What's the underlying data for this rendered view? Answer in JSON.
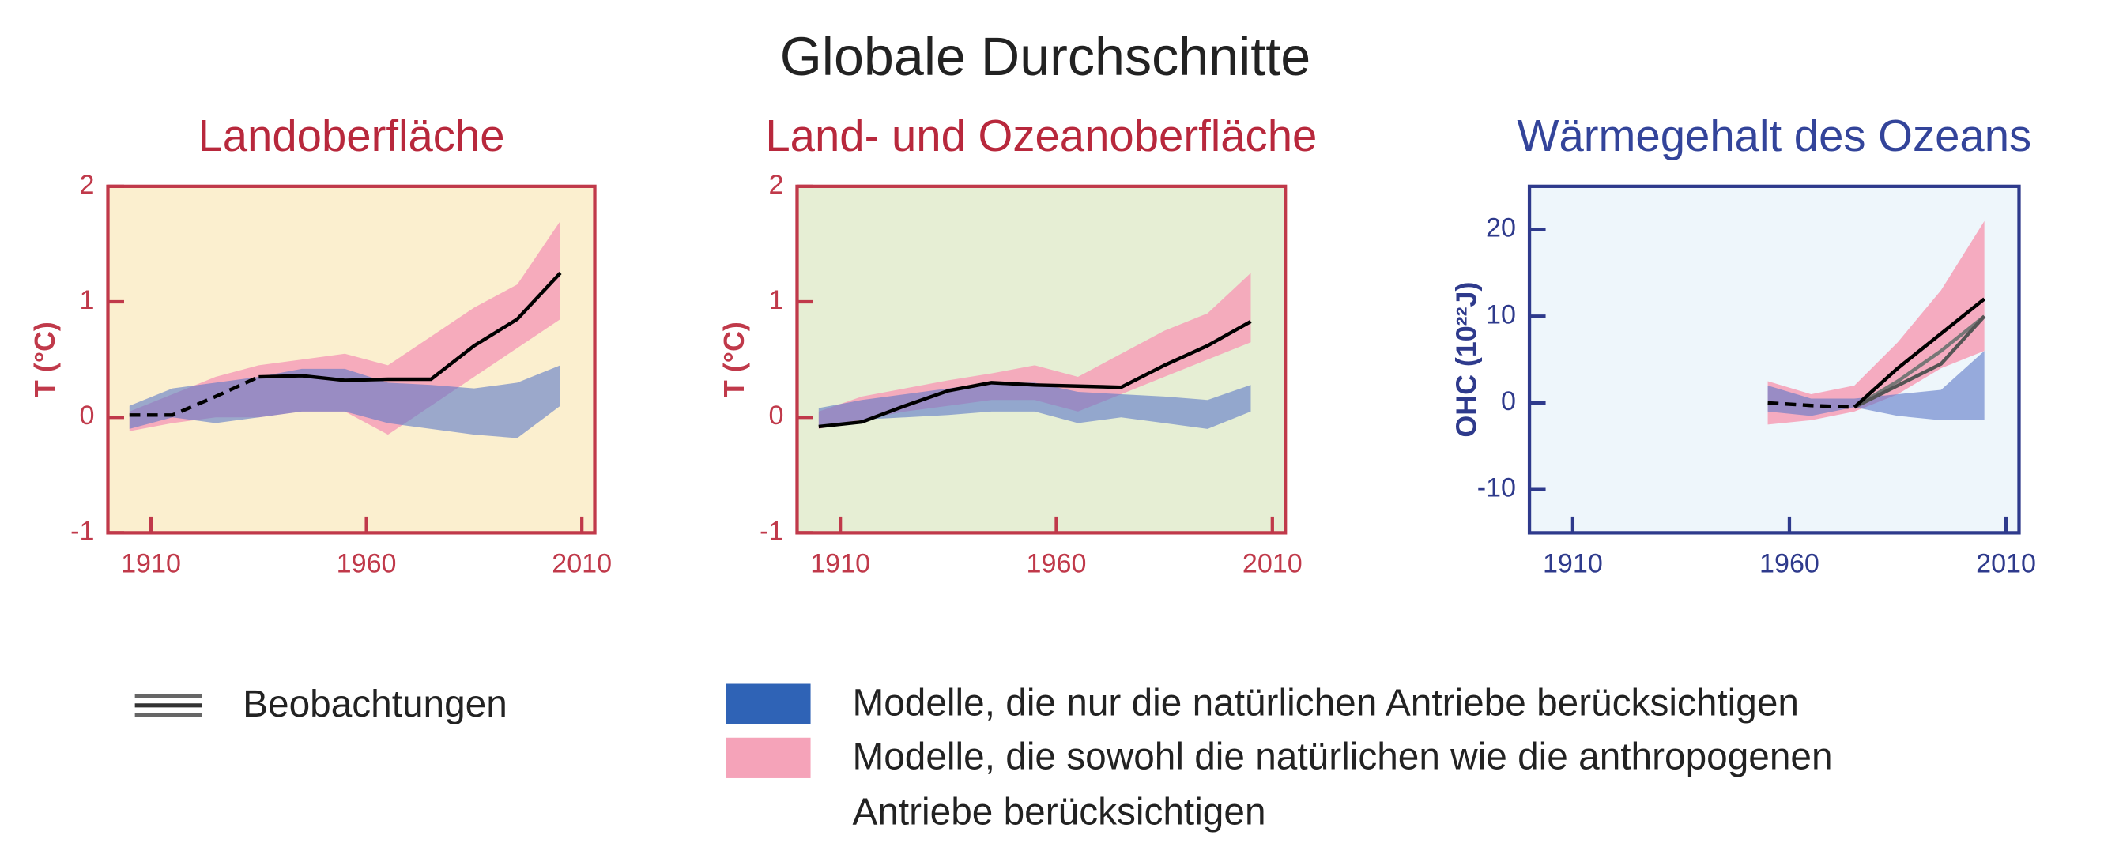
{
  "title": "Globale Durchschnitte",
  "legend": [
    {
      "name": [
        "Beobachtungen"
      ],
      "color": "#666666",
      "kind": "line"
    },
    {
      "name": [
        "Modelle, die nur die natürlichen Antriebe berücksichtigen"
      ],
      "color": "#2f63b6",
      "kind": "band"
    },
    {
      "name": [
        "Modelle, die sowohl die natürlichen wie die anthropogenen",
        "Antriebe berücksichtigen"
      ],
      "color": "#f5a3b9",
      "kind": "band"
    }
  ],
  "chart_data": [
    {
      "type": "line",
      "title": "Landoberfläche",
      "ylabel": "T (°C)",
      "title_color": "#b8283c",
      "axis_color": "#c0394a",
      "background": "#fbefcf",
      "x": [
        1905,
        1915,
        1925,
        1935,
        1945,
        1955,
        1965,
        1975,
        1985,
        1995,
        2005
      ],
      "xlim": [
        1900,
        2013
      ],
      "xticks": [
        1910,
        1960,
        2010
      ],
      "ylim": [
        -1,
        2
      ],
      "yticks": [
        -1,
        0,
        1,
        2
      ],
      "bands": [
        {
          "color": "#f5a3b9",
          "opacity": 0.9,
          "low": [
            -0.12,
            -0.05,
            0.0,
            0.0,
            0.05,
            0.05,
            -0.15,
            0.1,
            0.35,
            0.6,
            0.85
          ],
          "high": [
            0.05,
            0.2,
            0.35,
            0.45,
            0.5,
            0.55,
            0.45,
            0.7,
            0.95,
            1.15,
            1.7
          ]
        },
        {
          "color": "#5b78c8",
          "opacity": 0.6,
          "low": [
            -0.1,
            0.0,
            -0.05,
            0.0,
            0.05,
            0.05,
            -0.05,
            -0.1,
            -0.15,
            -0.18,
            0.1
          ],
          "high": [
            0.1,
            0.25,
            0.3,
            0.35,
            0.42,
            0.42,
            0.3,
            0.28,
            0.25,
            0.3,
            0.45
          ]
        }
      ],
      "series": [
        {
          "color": "#000000",
          "dash": true,
          "values": [
            0.02,
            0.02,
            0.18,
            0.35,
            null,
            null,
            null,
            null,
            null,
            null,
            null
          ]
        },
        {
          "color": "#000000",
          "dash": false,
          "values": [
            null,
            null,
            null,
            0.35,
            0.36,
            0.32,
            0.33,
            0.33,
            0.62,
            0.85,
            1.25
          ]
        }
      ]
    },
    {
      "type": "line",
      "title": "Land- und Ozeanoberfläche",
      "ylabel": "T (°C)",
      "title_color": "#b8283c",
      "axis_color": "#c0394a",
      "background": "#e6eed4",
      "x": [
        1905,
        1915,
        1925,
        1935,
        1945,
        1955,
        1965,
        1975,
        1985,
        1995,
        2005
      ],
      "xlim": [
        1900,
        2013
      ],
      "xticks": [
        1910,
        1960,
        2010
      ],
      "ylim": [
        -1,
        2
      ],
      "yticks": [
        -1,
        0,
        1,
        2
      ],
      "bands": [
        {
          "color": "#f5a3b9",
          "opacity": 0.9,
          "low": [
            -0.1,
            -0.02,
            0.05,
            0.1,
            0.15,
            0.15,
            0.05,
            0.2,
            0.35,
            0.5,
            0.65
          ],
          "high": [
            0.05,
            0.18,
            0.25,
            0.32,
            0.38,
            0.45,
            0.35,
            0.55,
            0.75,
            0.9,
            1.25
          ]
        },
        {
          "color": "#5b78c8",
          "opacity": 0.6,
          "low": [
            -0.08,
            -0.02,
            0.0,
            0.02,
            0.05,
            0.05,
            -0.05,
            0.0,
            -0.05,
            -0.1,
            0.05
          ],
          "high": [
            0.08,
            0.15,
            0.2,
            0.25,
            0.3,
            0.3,
            0.22,
            0.2,
            0.18,
            0.15,
            0.28
          ]
        }
      ],
      "series": [
        {
          "color": "#000000",
          "dash": false,
          "values": [
            -0.08,
            -0.04,
            0.1,
            0.23,
            0.3,
            0.28,
            0.27,
            0.26,
            0.45,
            0.62,
            0.83
          ]
        }
      ]
    },
    {
      "type": "line",
      "title": "Wärmegehalt des Ozeans",
      "ylabel": "OHC (10²²J)",
      "title_color": "#33449a",
      "axis_color": "#2e3a8c",
      "background": "#eef6fb",
      "x": [
        1955,
        1965,
        1975,
        1985,
        1995,
        2005
      ],
      "xlim": [
        1900,
        2013
      ],
      "xticks": [
        1910,
        1960,
        2010
      ],
      "ylim": [
        -15,
        25
      ],
      "yticks": [
        -10,
        0,
        10,
        20
      ],
      "bands": [
        {
          "color": "#f5a3b9",
          "opacity": 0.9,
          "low": [
            -2.5,
            -2,
            -1,
            1,
            4,
            6
          ],
          "high": [
            2.5,
            1,
            2,
            7,
            13,
            21
          ]
        },
        {
          "color": "#5b78c8",
          "opacity": 0.6,
          "low": [
            -1,
            -1.5,
            -0.5,
            -1.5,
            -2,
            -2
          ],
          "high": [
            2,
            0.5,
            0.5,
            1,
            1.5,
            6
          ]
        }
      ],
      "series": [
        {
          "color": "#000000",
          "dash": true,
          "values": [
            0,
            -0.3,
            -0.5,
            null,
            null,
            null
          ]
        },
        {
          "color": "#777777",
          "dash": false,
          "values": [
            null,
            null,
            -0.5,
            2.5,
            6,
            10
          ]
        },
        {
          "color": "#555555",
          "dash": false,
          "values": [
            null,
            null,
            -0.5,
            2,
            4.5,
            10
          ]
        },
        {
          "color": "#000000",
          "dash": false,
          "values": [
            null,
            null,
            -0.5,
            4,
            8,
            12
          ]
        }
      ]
    }
  ]
}
